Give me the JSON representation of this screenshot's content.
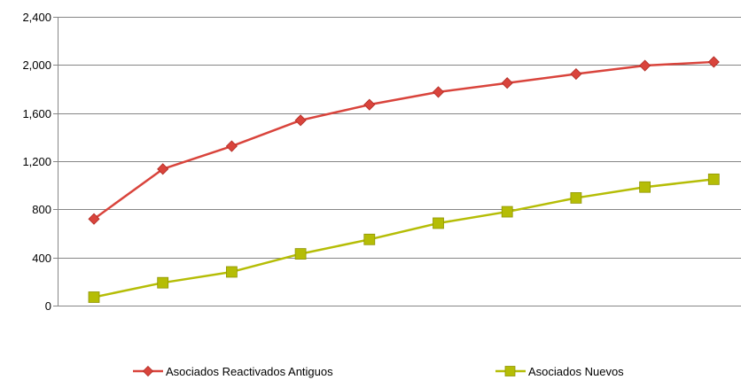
{
  "chart_data": {
    "type": "line",
    "title": "",
    "xlabel": "",
    "ylabel": "",
    "ylim": [
      0,
      2400
    ],
    "yticks": [
      "0",
      "400",
      "800",
      "1,200",
      "1,600",
      "2,000",
      "2,400"
    ],
    "ytick_values": [
      0,
      400,
      800,
      1200,
      1600,
      2000,
      2400
    ],
    "grid": true,
    "legend_position": "bottom",
    "series": [
      {
        "name": "Asociados Reactivados Antiguos",
        "color": "#d9443c",
        "marker": "diamond",
        "values": [
          720,
          1135,
          1325,
          1540,
          1670,
          1775,
          1850,
          1925,
          1995,
          2025
        ]
      },
      {
        "name": "Asociados Nuevos",
        "color": "#b5bd06",
        "marker": "square",
        "values": [
          70,
          190,
          280,
          430,
          550,
          685,
          780,
          895,
          985,
          1050
        ]
      }
    ]
  }
}
